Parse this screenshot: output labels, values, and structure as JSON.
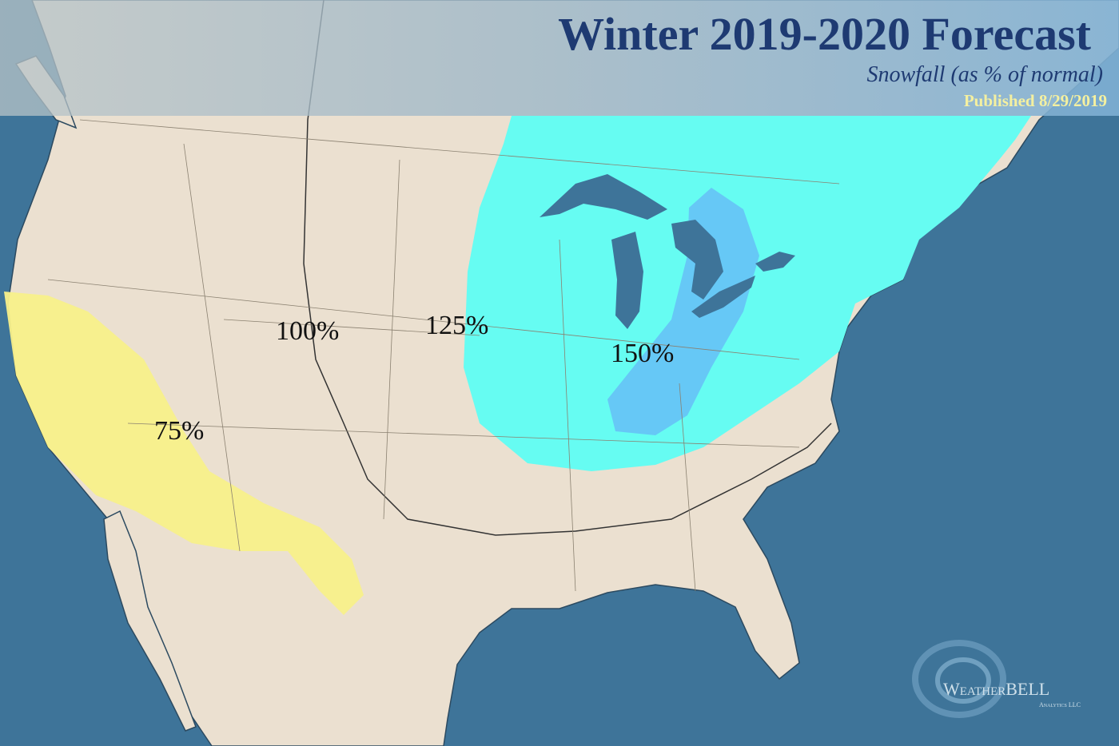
{
  "header": {
    "title": "Winter 2019-2020 Forecast",
    "subtitle": "Snowfall (as % of normal)",
    "published": "Published 8/29/2019"
  },
  "map": {
    "labels": [
      {
        "text": "75%"
      },
      {
        "text": "100%"
      },
      {
        "text": "125%"
      },
      {
        "text": "150%"
      }
    ]
  },
  "logo": {
    "name": "WeatherBELL",
    "tagline": "Analytics LLC"
  }
}
